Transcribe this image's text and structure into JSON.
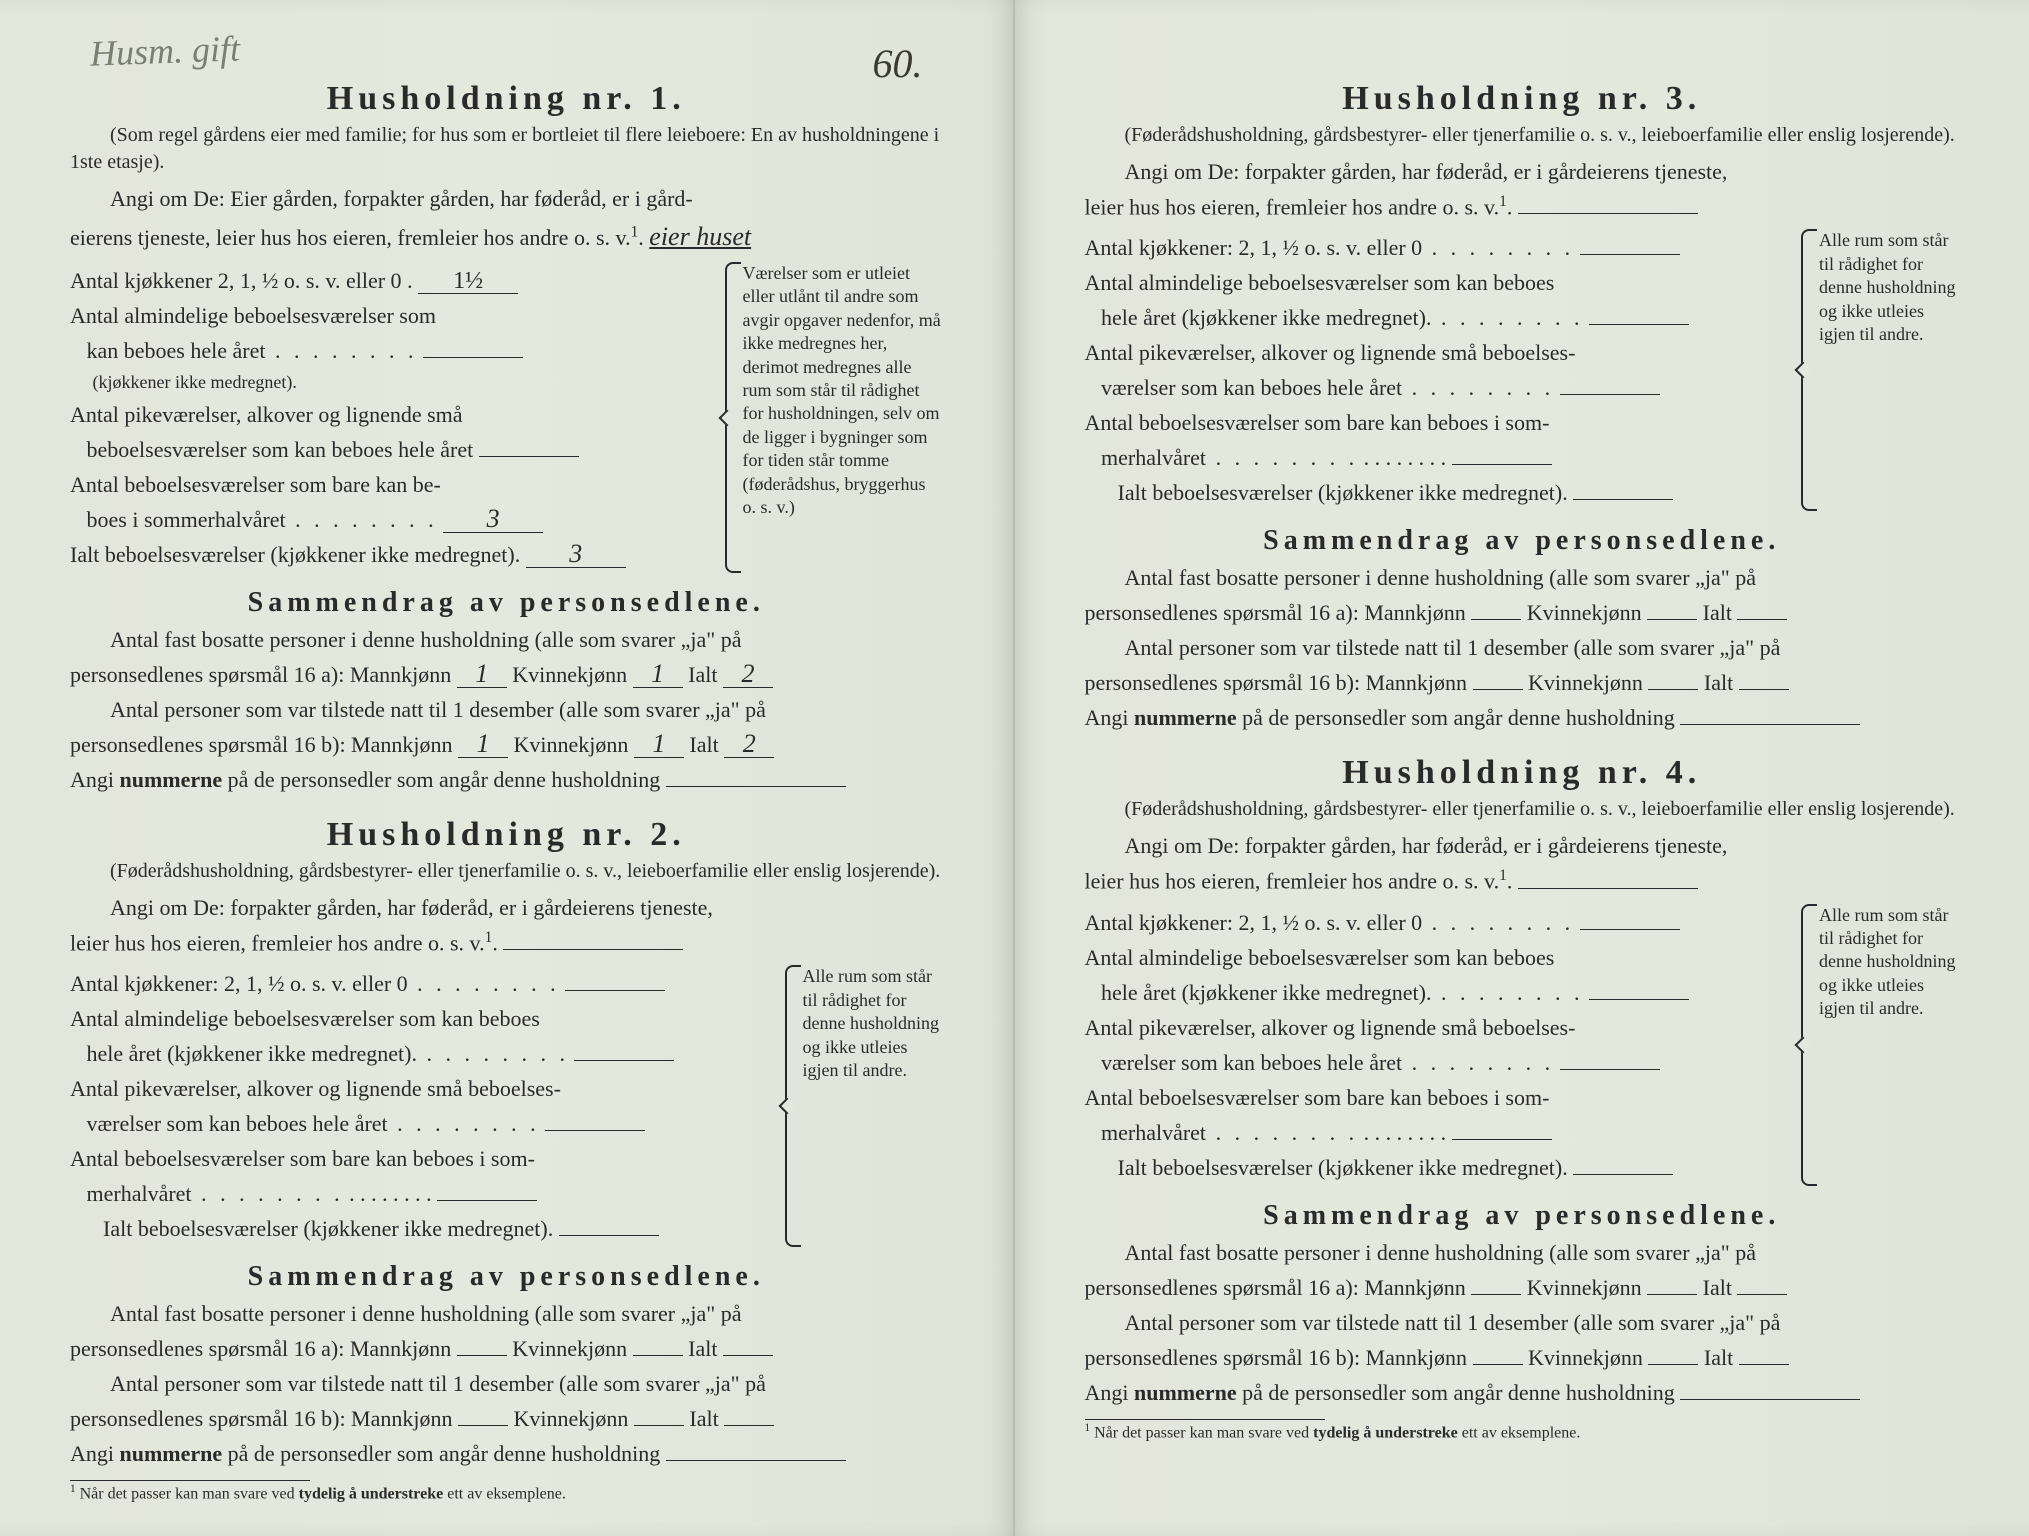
{
  "handwriting": {
    "top_left": "Husm. gift",
    "page_number": "60.",
    "answer1_extra": "eier huset",
    "kitchens1": "1½",
    "summer_rooms": "3",
    "total_rooms": "3",
    "male_a": "1",
    "female_a": "1",
    "total_a": "2",
    "male_b": "1",
    "female_b": "1",
    "total_b": "2"
  },
  "titles": {
    "h1": "Husholdning nr. 1.",
    "h2": "Husholdning nr. 2.",
    "h3": "Husholdning nr. 3.",
    "h4": "Husholdning nr. 4.",
    "summary": "Sammendrag av personsedlene."
  },
  "h1": {
    "sub": "(Som regel gårdens eier med familie; for hus som er bortleiet til flere leieboere: En av husholdningene i 1ste etasje).",
    "q1a": "Angi om De: Eier gården, forpakter gården, har føderåd, er i gård-",
    "q1b": "eierens tjeneste, leier hus hos eieren, fremleier hos andre o. s. v.",
    "kitchens": "Antal kjøkkener 2, 1, ½ o. s. v. eller 0",
    "rooms1a": "Antal almindelige beboelsesværelser som",
    "rooms1b": "kan beboes hele året",
    "rooms1c": "(kjøkkener ikke medregnet).",
    "rooms2a": "Antal pikeværelser, alkover og lignende små",
    "rooms2b": "beboelsesværelser som kan beboes hele året",
    "rooms3a": "Antal beboelsesværelser som bare kan be-",
    "rooms3b": "boes i sommerhalvåret",
    "total": "Ialt beboelsesværelser (kjøkkener ikke medregnet).",
    "note": "Værelser som er utleiet eller utlånt til andre som avgir opgaver nedenfor, må ikke medregnes her, derimot medregnes alle rum som står til rådighet for husholdningen, selv om de ligger i bygninger som for tiden står tomme (føderådshus, bryggerhus o. s. v.)"
  },
  "common": {
    "sub": "(Føderådshusholdning, gårdsbestyrer- eller tjenerfamilie o. s. v., leieboerfamilie eller enslig losjerende).",
    "q1a": "Angi om De: forpakter gården, har føderåd, er i gårdeierens tjeneste,",
    "q1b": "leier hus hos eieren, fremleier hos andre o. s. v.",
    "kitchens": "Antal kjøkkener: 2, 1, ½ o. s. v. eller 0",
    "rooms1a": "Antal almindelige beboelsesværelser som kan beboes",
    "rooms1b": "hele året (kjøkkener ikke medregnet).",
    "rooms2a": "Antal pikeværelser, alkover og lignende små beboelses-",
    "rooms2b": "værelser som kan beboes hele året",
    "rooms3a": "Antal beboelsesværelser som bare kan beboes i som-",
    "rooms3b": "merhalvåret",
    "total": "Ialt beboelsesværelser (kjøkkener ikke medregnet).",
    "note": "Alle rum som står til rådighet for denne husholdning og ikke utleies igjen til andre."
  },
  "summary": {
    "line1a": "Antal fast bosatte personer i denne husholdning (alle som svarer „ja\" på",
    "line1b": "personsedlenes spørsmål 16 a): Mannkjønn",
    "kvinne": "Kvinnekjønn",
    "ialt": "Ialt",
    "line2a": "Antal personer som var tilstede natt til 1 desember (alle som svarer „ja\" på",
    "line2b": "personsedlenes spørsmål 16 b): Mannkjønn",
    "numbers_pre": "Angi ",
    "numbers_bold": "nummerne",
    "numbers_post": " på de personsedler som angår denne husholdning"
  },
  "footnote": {
    "sup": "1",
    "pre": " Når det passer kan man svare ved ",
    "bold": "tydelig å understreke",
    "post": " ett av eksemplene."
  }
}
